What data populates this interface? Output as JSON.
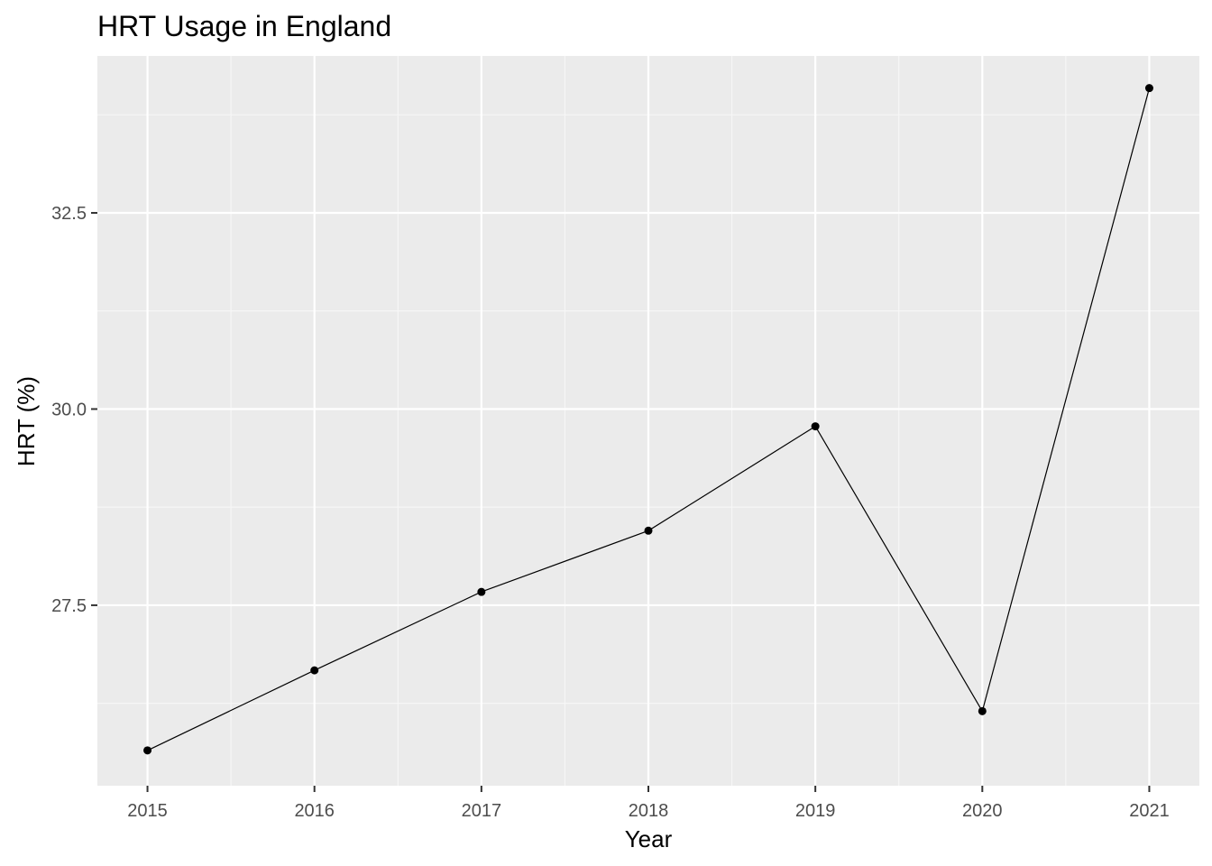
{
  "chart_data": {
    "type": "line",
    "title": "HRT Usage in England",
    "xlabel": "Year",
    "ylabel": "HRT (%)",
    "x": [
      2015,
      2016,
      2017,
      2018,
      2019,
      2020,
      2021
    ],
    "x_tick_labels": [
      "2015",
      "2016",
      "2017",
      "2018",
      "2019",
      "2020",
      "2021"
    ],
    "y_ticks": [
      27.5,
      30.0,
      32.5
    ],
    "y_tick_labels": [
      "27.5",
      "30.0",
      "32.5"
    ],
    "xlim": [
      2014.7,
      2021.3
    ],
    "ylim": [
      25.2,
      34.5
    ],
    "grid": true,
    "legend": "none",
    "series": [
      {
        "values": [
          25.65,
          26.67,
          27.67,
          28.45,
          29.78,
          26.15,
          34.09
        ]
      }
    ],
    "colors": {
      "panel_background": "#EBEBEB",
      "grid_major": "#FFFFFF",
      "grid_minor": "#F7F7F7",
      "line": "#000000",
      "point": "#000000",
      "tick_mark": "#333333"
    }
  }
}
